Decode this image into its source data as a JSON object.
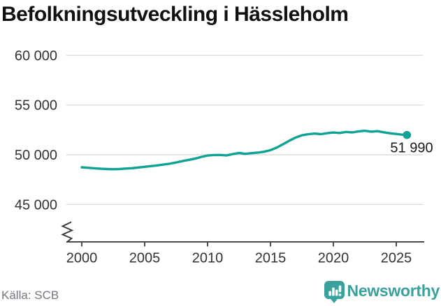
{
  "title": "Befolkningsutveckling i Hässleholm",
  "source": "Källa: SCB",
  "branding": {
    "logo_text": "Newsworthy",
    "logo_icon": "bar-chart-speech-bubble"
  },
  "colors": {
    "line": "#10a294",
    "logo": "#3aa29c",
    "grid": "#dcdcdc",
    "axis": "#4a4a4a",
    "title_text": "#111111",
    "axis_text": "#333333",
    "source_text": "#76767f",
    "label_text": "#1a1a1a"
  },
  "chart_data": {
    "type": "line",
    "title": "Befolkningsutveckling i Hässleholm",
    "xlabel": "",
    "ylabel": "",
    "grid": "horizontal",
    "legend": false,
    "y_axis_break": true,
    "x_ticks": [
      "2000",
      "2005",
      "2010",
      "2015",
      "2020",
      "2025"
    ],
    "x_tick_values": [
      2000,
      2005,
      2010,
      2015,
      2020,
      2025
    ],
    "y_ticks": [
      "45 000",
      "50 000",
      "55 000",
      "60 000"
    ],
    "y_tick_values": [
      45000,
      50000,
      55000,
      60000
    ],
    "xlim": [
      1999.5,
      2026.3
    ],
    "ylim": [
      44500,
      60500
    ],
    "end_point_label": "51 990",
    "end_point_value": 51990,
    "x": [
      2000,
      2000.5,
      2001,
      2001.5,
      2002,
      2002.5,
      2003,
      2003.5,
      2004,
      2004.5,
      2005,
      2005.5,
      2006,
      2006.5,
      2007,
      2007.5,
      2008,
      2008.5,
      2009,
      2009.5,
      2010,
      2010.5,
      2011,
      2011.5,
      2012,
      2012.5,
      2013,
      2013.5,
      2014,
      2014.5,
      2015,
      2015.5,
      2016,
      2016.5,
      2017,
      2017.5,
      2018,
      2018.5,
      2019,
      2019.5,
      2020,
      2020.5,
      2021,
      2021.5,
      2022,
      2022.5,
      2023,
      2023.5,
      2024,
      2024.5,
      2025,
      2025.4,
      2025.85
    ],
    "series": [
      {
        "name": "Hässleholm",
        "color": "#10a294",
        "values": [
          48740,
          48690,
          48640,
          48590,
          48560,
          48540,
          48560,
          48610,
          48650,
          48720,
          48790,
          48860,
          48930,
          49010,
          49100,
          49220,
          49360,
          49480,
          49610,
          49780,
          49920,
          49970,
          49980,
          49940,
          50060,
          50180,
          50090,
          50160,
          50220,
          50300,
          50460,
          50720,
          51060,
          51420,
          51730,
          51960,
          52060,
          52130,
          52070,
          52170,
          52240,
          52190,
          52290,
          52250,
          52340,
          52410,
          52320,
          52370,
          52260,
          52160,
          52090,
          52030,
          51990
        ]
      }
    ]
  }
}
